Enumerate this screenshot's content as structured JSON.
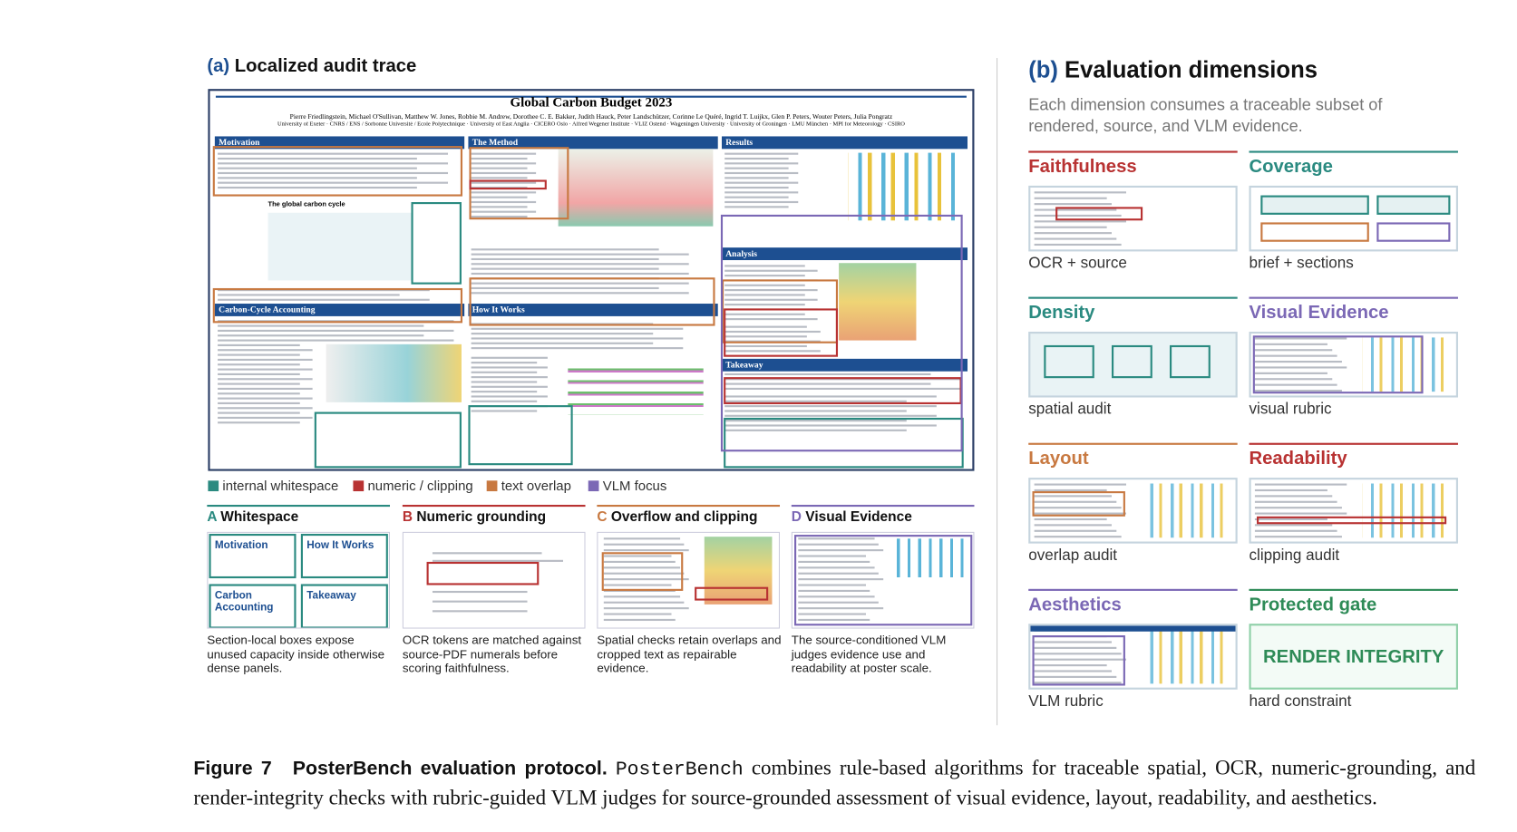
{
  "panel_a": {
    "label": "(a)",
    "title": "Localized audit trace",
    "poster": {
      "title": "Global Carbon Budget 2023",
      "authors": "Pierre Friedlingstein, Michael O'Sullivan, Matthew W. Jones, Robbie M. Andrew, Dorothee C. E. Bakker, Judith Hauck, Peter Landschützer, Corinne Le Quéré, Ingrid T. Luijkx, Glen P. Peters, Wouter Peters, Julia Pongratz",
      "affiliations": "University of Exeter · CNRS / ENS / Sorbonne Université / École Polytechnique · University of East Anglia · CICERO Oslo · Alfred Wegener Institute · VLIZ Ostend · Wageningen University · University of Groningen · LMU München · MPI for Meteorology · CSIRO",
      "sections": [
        "Motivation",
        "The Method",
        "Results",
        "Carbon-Cycle Accounting",
        "How It Works",
        "Analysis",
        "Takeaway"
      ],
      "figure_label": "The global carbon cycle"
    },
    "legend": [
      {
        "label": "internal whitespace",
        "color": "#2a8a80"
      },
      {
        "label": "numeric / clipping",
        "color": "#b83232"
      },
      {
        "label": "text overlap",
        "color": "#c87941"
      },
      {
        "label": "VLM focus",
        "color": "#7b68b5"
      }
    ],
    "subpanels": [
      {
        "letter": "A",
        "title": "Whitespace",
        "color": "#2a8a80",
        "caption": "Section-local boxes expose unused capacity inside otherwise dense panels.",
        "thumb_labels": [
          "Motivation",
          "How It Works",
          "Carbon Accounting",
          "Takeaway"
        ]
      },
      {
        "letter": "B",
        "title": "Numeric grounding",
        "color": "#b83232",
        "caption": "OCR tokens are matched against source-PDF numerals before scoring faithfulness."
      },
      {
        "letter": "C",
        "title": "Overflow and clipping",
        "color": "#c87941",
        "caption": "Spatial checks retain overlaps and cropped text as repairable evidence."
      },
      {
        "letter": "D",
        "title": "Visual Evidence",
        "color": "#7b68b5",
        "caption": "The source-conditioned VLM judges evidence use and readability at poster scale."
      }
    ]
  },
  "panel_b": {
    "label": "(b)",
    "title": "Evaluation dimensions",
    "subtitle": "Each dimension consumes a traceable subset of rendered, source, and VLM evidence.",
    "dimensions": [
      {
        "name": "Faithfulness",
        "color": "#b83232",
        "note": "OCR + source"
      },
      {
        "name": "Coverage",
        "color": "#2a8a80",
        "note": "brief + sections"
      },
      {
        "name": "Density",
        "color": "#2a8a80",
        "note": "spatial audit"
      },
      {
        "name": "Visual Evidence",
        "color": "#7b68b5",
        "note": "visual rubric"
      },
      {
        "name": "Layout",
        "color": "#c87941",
        "note": "overlap audit"
      },
      {
        "name": "Readability",
        "color": "#b83232",
        "note": "clipping audit"
      },
      {
        "name": "Aesthetics",
        "color": "#7b68b5",
        "note": "VLM rubric"
      },
      {
        "name": "Protected gate",
        "color": "#2e8b57",
        "note": "hard constraint",
        "thumb_text": "RENDER INTEGRITY"
      }
    ]
  },
  "caption": {
    "label": "Figure 7",
    "title": "PosterBench evaluation protocol.",
    "name": "PosterBench",
    "text": "combines rule-based algorithms for traceable spatial, OCR, numeric-grounding, and render-integrity checks with rubric-guided VLM judges for source-grounded assessment of visual evidence, layout, readability, and aesthetics."
  }
}
